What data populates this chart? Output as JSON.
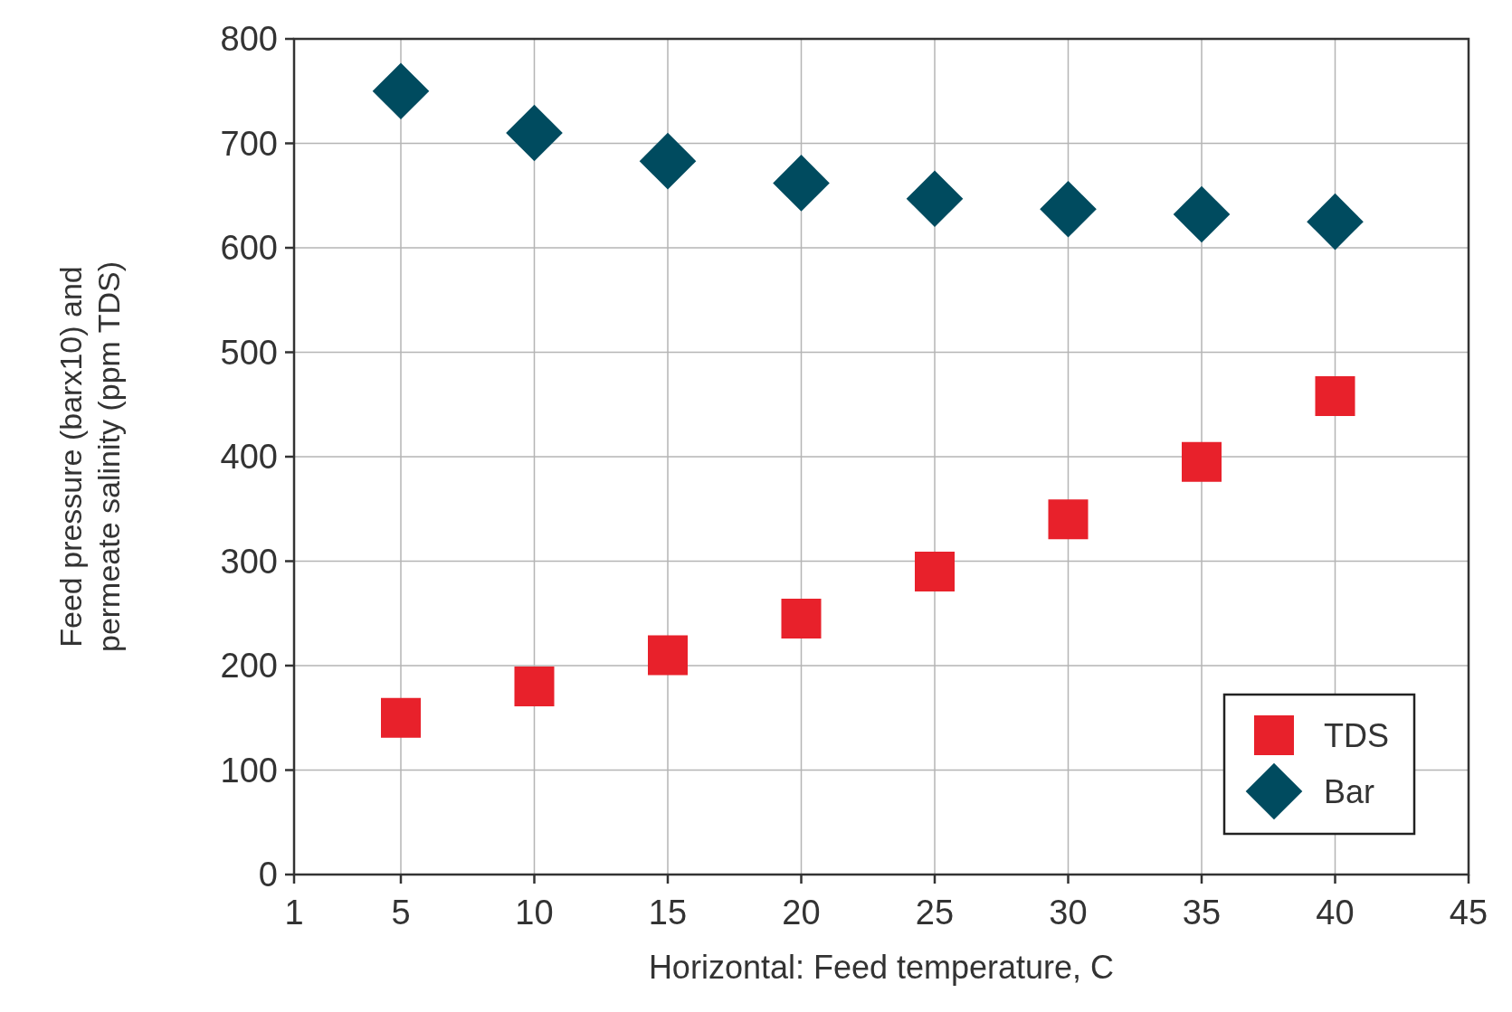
{
  "chart_data": {
    "type": "scatter",
    "xlabel": "Horizontal: Feed temperature, C",
    "ylabel": "Feed pressure (barx10) and\npermeate salinity (ppm TDS)",
    "xlim": [
      1,
      45
    ],
    "xticks": [
      1,
      5,
      10,
      15,
      20,
      25,
      30,
      35,
      40,
      45
    ],
    "ylim": [
      0,
      800
    ],
    "yticks": [
      0,
      100,
      200,
      300,
      400,
      500,
      600,
      700,
      800
    ],
    "grid": true,
    "legend": "bottom right",
    "series": [
      {
        "name": "TDS",
        "color": "#e8212b",
        "marker": "square",
        "x": [
          5,
          10,
          15,
          20,
          25,
          30,
          35,
          40
        ],
        "values": [
          150,
          180,
          210,
          245,
          290,
          340,
          395,
          458
        ]
      },
      {
        "name": "Bar",
        "color": "#004b5f",
        "marker": "diamond",
        "x": [
          5,
          10,
          15,
          20,
          25,
          30,
          35,
          40
        ],
        "values": [
          750,
          710,
          683,
          662,
          647,
          637,
          632,
          625
        ]
      }
    ]
  }
}
